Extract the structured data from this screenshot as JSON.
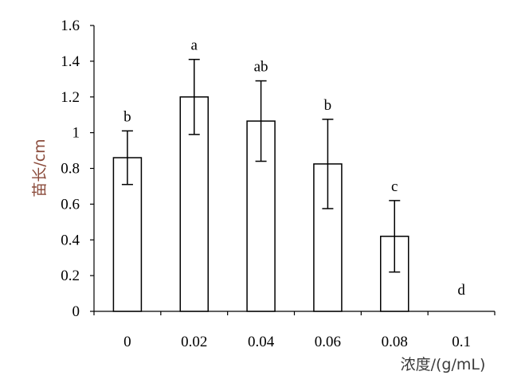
{
  "chart_data": {
    "type": "bar",
    "title": "",
    "xlabel": "浓度/(g/mL)",
    "ylabel": "苗长/cm",
    "categories": [
      "0",
      "0.02",
      "0.04",
      "0.06",
      "0.08",
      "0.1"
    ],
    "values": [
      0.86,
      1.2,
      1.065,
      0.825,
      0.42,
      0
    ],
    "errors": [
      0.15,
      0.21,
      0.225,
      0.25,
      0.2,
      0
    ],
    "significance": [
      "b",
      "a",
      "ab",
      "b",
      "c",
      "d"
    ],
    "ylim": [
      0,
      1.6
    ],
    "yticks": [
      "0",
      "0.2",
      "0.4",
      "0.6",
      "0.8",
      "1",
      "1.2",
      "1.4",
      "1.6"
    ],
    "grid": false,
    "colors": {
      "bar_fill": "#ffffff",
      "bar_stroke": "#000000",
      "ylabel_color": "#8a4a3a"
    }
  }
}
